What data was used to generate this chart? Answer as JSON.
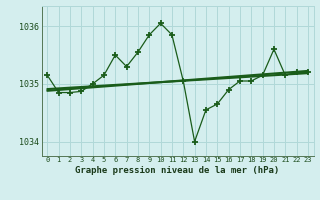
{
  "xlabel": "Graphe pression niveau de la mer (hPa)",
  "x_labels": [
    "0",
    "1",
    "2",
    "3",
    "4",
    "5",
    "6",
    "7",
    "8",
    "9",
    "10",
    "11",
    "12",
    "13",
    "14",
    "15",
    "16",
    "17",
    "18",
    "19",
    "20",
    "21",
    "22",
    "23"
  ],
  "x_values": [
    0,
    1,
    2,
    3,
    4,
    5,
    6,
    7,
    8,
    9,
    10,
    11,
    12,
    13,
    14,
    15,
    16,
    17,
    18,
    19,
    20,
    21,
    22,
    23
  ],
  "y_main": [
    1035.15,
    1034.85,
    1034.85,
    1034.87,
    1035.0,
    1035.15,
    1035.5,
    1035.3,
    1035.55,
    1035.85,
    1036.05,
    1035.85,
    1035.05,
    1034.0,
    1034.55,
    1034.65,
    1034.9,
    1035.05,
    1035.05,
    1035.15,
    1035.6,
    1035.15,
    1035.2,
    1035.2
  ],
  "y_trend1": [
    1034.88,
    1034.895,
    1034.91,
    1034.925,
    1034.94,
    1034.955,
    1034.97,
    1034.985,
    1035.0,
    1035.015,
    1035.03,
    1035.045,
    1035.06,
    1035.075,
    1035.09,
    1035.105,
    1035.12,
    1035.135,
    1035.15,
    1035.165,
    1035.18,
    1035.195,
    1035.21,
    1035.225
  ],
  "y_trend2": [
    1034.91,
    1034.922,
    1034.934,
    1034.946,
    1034.958,
    1034.97,
    1034.982,
    1034.994,
    1035.006,
    1035.018,
    1035.03,
    1035.042,
    1035.054,
    1035.066,
    1035.078,
    1035.09,
    1035.102,
    1035.114,
    1035.126,
    1035.138,
    1035.15,
    1035.162,
    1035.174,
    1035.186
  ],
  "ylim": [
    1033.75,
    1036.35
  ],
  "yticks": [
    1034,
    1035,
    1036
  ],
  "bg_color": "#d4eeee",
  "grid_color": "#b0d8d8",
  "line_color": "#1a5c1a",
  "trend_color": "#1a5c1a",
  "marker": "+",
  "markersize": 4,
  "linewidth": 0.9,
  "trend_linewidth": 1.5
}
